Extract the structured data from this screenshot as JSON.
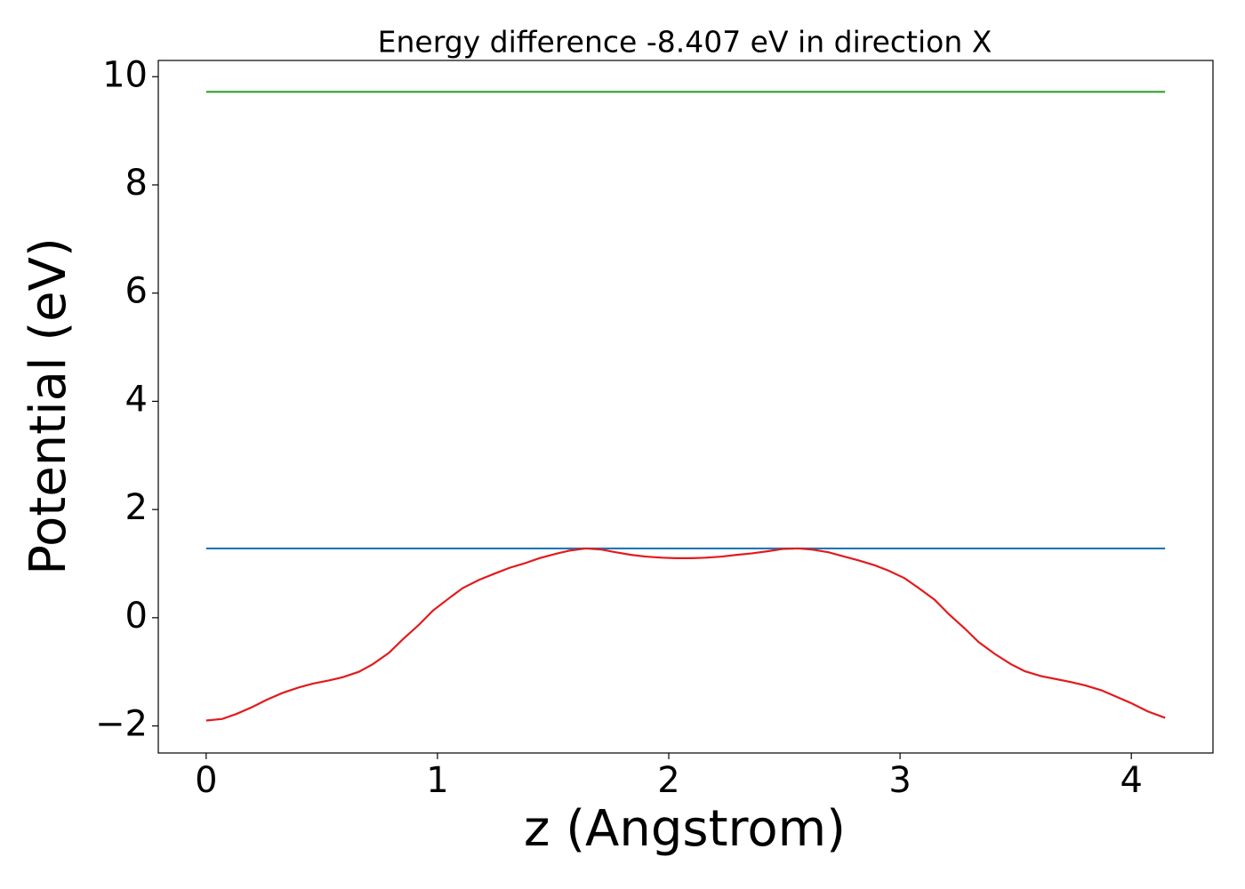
{
  "chart_data": {
    "type": "line",
    "title": "Energy difference -8.407 eV in direction X",
    "xlabel": "z (Angstrom)",
    "ylabel": "Potential (eV)",
    "xlim": [
      -0.207,
      4.353
    ],
    "ylim": [
      -2.5,
      10.3
    ],
    "xticks": [
      0,
      1,
      2,
      3,
      4
    ],
    "yticks": [
      {
        "value": -2,
        "label": "−2"
      },
      0,
      2,
      4,
      6,
      8,
      10
    ],
    "grid": false,
    "series": [
      {
        "color": "#2ca02c",
        "x": [
          0,
          4.146
        ],
        "values": [
          9.72,
          9.72
        ]
      },
      {
        "color": "#1f77b4",
        "x": [
          0,
          4.146
        ],
        "values": [
          1.28,
          1.28
        ]
      },
      {
        "color": "#e31a1c",
        "x": [
          0,
          0.07,
          0.13,
          0.2,
          0.26,
          0.33,
          0.4,
          0.46,
          0.53,
          0.59,
          0.66,
          0.72,
          0.79,
          0.85,
          0.92,
          0.98,
          1.05,
          1.11,
          1.18,
          1.25,
          1.31,
          1.38,
          1.44,
          1.51,
          1.57,
          1.64,
          1.71,
          1.77,
          1.84,
          1.9,
          1.97,
          2.03,
          2.1,
          2.16,
          2.23,
          2.29,
          2.36,
          2.43,
          2.49,
          2.56,
          2.62,
          2.69,
          2.75,
          2.82,
          2.89,
          2.95,
          3.02,
          3.08,
          3.15,
          3.21,
          3.28,
          3.34,
          3.41,
          3.48,
          3.54,
          3.61,
          3.67,
          3.74,
          3.8,
          3.87,
          3.93,
          4.0,
          4.07,
          4.146
        ],
        "values": [
          -1.9,
          -1.87,
          -1.78,
          -1.65,
          -1.52,
          -1.39,
          -1.29,
          -1.22,
          -1.16,
          -1.1,
          -1.0,
          -0.86,
          -0.65,
          -0.4,
          -0.13,
          0.13,
          0.36,
          0.55,
          0.7,
          0.82,
          0.92,
          1.01,
          1.1,
          1.18,
          1.24,
          1.28,
          1.26,
          1.21,
          1.16,
          1.13,
          1.11,
          1.1,
          1.1,
          1.11,
          1.13,
          1.16,
          1.19,
          1.23,
          1.27,
          1.28,
          1.26,
          1.21,
          1.14,
          1.06,
          0.97,
          0.87,
          0.73,
          0.55,
          0.33,
          0.07,
          -0.2,
          -0.45,
          -0.67,
          -0.86,
          -0.99,
          -1.08,
          -1.13,
          -1.19,
          -1.25,
          -1.34,
          -1.45,
          -1.58,
          -1.73,
          -1.85
        ]
      }
    ]
  }
}
